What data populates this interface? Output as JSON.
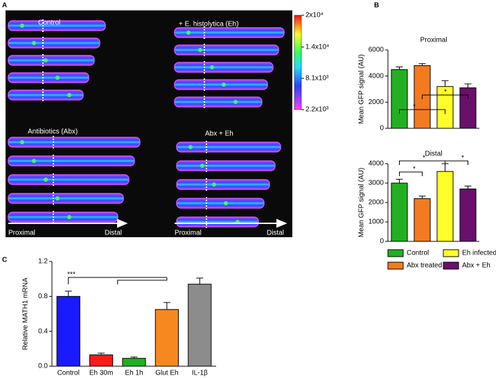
{
  "panel_labels": [
    "A",
    "B",
    "C"
  ],
  "image_panel": {
    "groups": [
      "Control",
      "+ E. histolytica (Eh)",
      "Antibiotics (Abx)",
      "Abx + Eh"
    ],
    "axis_labels": [
      "Proximal",
      "Distal",
      "Proximal",
      "Distal"
    ],
    "colorbar": {
      "lim": [
        2200,
        20000
      ],
      "ticks": [
        {
          "value": 20000,
          "label": "2x10⁴"
        },
        {
          "value": 14000,
          "label": "1.4x10⁴"
        },
        {
          "value": 8100,
          "label": "8.1x10³"
        },
        {
          "value": 2200,
          "label": "2.2x10³"
        }
      ]
    }
  },
  "legend": [
    {
      "name": "Control",
      "color": "#22b022"
    },
    {
      "name": "Abx treated",
      "color": "#f47a20"
    },
    {
      "name": "Eh infected",
      "color": "#ffff2a"
    },
    {
      "name": "Abx + Eh",
      "color": "#6a0f6a"
    }
  ],
  "chart_data": [
    {
      "type": "bar",
      "title": "Proximal",
      "y_label": "Mean GFP signal (AU)",
      "values": [
        4500,
        4800,
        3200,
        3100
      ],
      "errors": [
        200,
        150,
        450,
        300
      ],
      "ylim": [
        0,
        6000
      ],
      "yticks": [
        0,
        2000,
        4000,
        6000
      ],
      "annotations": [
        "*",
        "*"
      ]
    },
    {
      "type": "bar",
      "title": "Distal",
      "y_label": "Mean GFP signal (AU)",
      "values": [
        3000,
        2200,
        3600,
        2700
      ],
      "errors": [
        200,
        130,
        400,
        150
      ],
      "ylim": [
        0,
        4000
      ],
      "yticks": [
        0,
        1000,
        2000,
        3000,
        4000
      ],
      "annotations": [
        "*",
        "*",
        "*"
      ]
    },
    {
      "type": "bar",
      "y_label": "Relative MATH1 mRNA",
      "categories": [
        "Control",
        "Eh 30m",
        "Eh 1h",
        "Glut Eh",
        "IL-1β"
      ],
      "colors": [
        "#1a1aff",
        "#ff1a1a",
        "#1fb01f",
        "#f7881f",
        "#8c8c8c"
      ],
      "values": [
        0.8,
        0.13,
        0.09,
        0.65,
        0.94
      ],
      "errors": [
        0.06,
        0.02,
        0.015,
        0.08,
        0.07
      ],
      "ylim": [
        0,
        1.2
      ],
      "yticks": [
        {
          "value": 0,
          "label": "0.0"
        },
        0.4,
        0.8,
        1.2
      ],
      "annotations": [
        "***"
      ]
    }
  ]
}
